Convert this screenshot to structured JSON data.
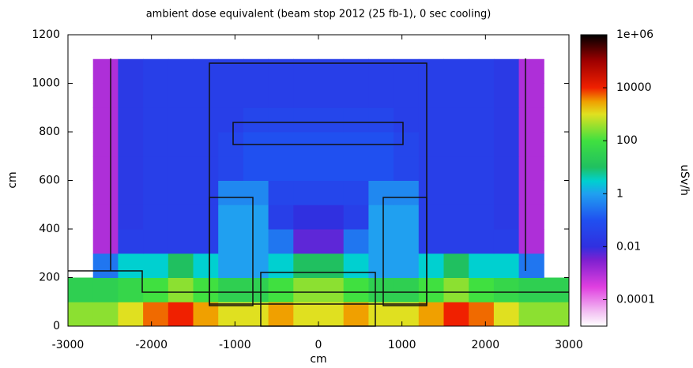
{
  "chart_data": {
    "type": "heatmap",
    "title": "ambient dose equivalent (beam stop 2012 (25 fb-1), 0 sec cooling)",
    "xlabel": "cm",
    "ylabel": "cm",
    "colorbar_label": "uSv/h",
    "xlim": [
      -3000,
      3000
    ],
    "xticks": [
      -3000,
      -2000,
      -1000,
      0,
      1000,
      2000,
      3000
    ],
    "ylim": [
      0,
      1200
    ],
    "yticks": [
      0,
      200,
      400,
      600,
      800,
      1000,
      1200
    ],
    "zlim": [
      1e-05,
      1000000
    ],
    "zticks": [
      {
        "value": 1000000,
        "label": "1e+06"
      },
      10000,
      100,
      1,
      0.01,
      0.0001
    ],
    "zscale": "log",
    "colormap": [
      {
        "value": 1e-05,
        "color": "#ffffff"
      },
      {
        "value": 3e-05,
        "color": "#f4c8f4"
      },
      {
        "value": 0.0003,
        "color": "#e040e0"
      },
      {
        "value": 0.003,
        "color": "#8020d0"
      },
      {
        "value": 0.01,
        "color": "#3030e0"
      },
      {
        "value": 0.1,
        "color": "#2050f0"
      },
      {
        "value": 1,
        "color": "#20a0f0"
      },
      {
        "value": 3,
        "color": "#00d0d0"
      },
      {
        "value": 10,
        "color": "#20c060"
      },
      {
        "value": 100,
        "color": "#40e040"
      },
      {
        "value": 1000,
        "color": "#e0e020"
      },
      {
        "value": 3000,
        "color": "#f0a000"
      },
      {
        "value": 10000,
        "color": "#f02000"
      },
      {
        "value": 100000,
        "color": "#a00000"
      },
      {
        "value": 1000000,
        "color": "#000000"
      }
    ],
    "x_edges": [
      -3000,
      -2700,
      -2400,
      -2100,
      -1800,
      -1500,
      -1200,
      -900,
      -600,
      -300,
      0,
      300,
      600,
      900,
      1200,
      1500,
      1800,
      2100,
      2400,
      2700,
      3000
    ],
    "y_edges": [
      0,
      100,
      200,
      300,
      400,
      500,
      600,
      700,
      800,
      900,
      1000,
      1100,
      1200
    ],
    "z": [
      [
        300,
        300,
        1000,
        5000,
        10000,
        3000,
        1000,
        1000,
        3000,
        1000,
        1000,
        3000,
        1000,
        1000,
        3000,
        10000,
        5000,
        1000,
        300,
        300
      ],
      [
        30,
        30,
        50,
        100,
        300,
        100,
        30,
        30,
        100,
        300,
        300,
        100,
        30,
        30,
        100,
        300,
        100,
        50,
        30,
        30
      ],
      [
        null,
        0.3,
        3,
        3,
        10,
        3,
        1,
        1,
        3,
        10,
        10,
        3,
        1,
        1,
        3,
        10,
        3,
        3,
        0.3,
        null
      ],
      [
        null,
        0.001,
        0.03,
        0.03,
        0.03,
        0.03,
        1,
        1,
        0.3,
        0.005,
        0.005,
        0.3,
        1,
        1,
        0.03,
        0.03,
        0.03,
        0.03,
        0.001,
        null
      ],
      [
        null,
        0.001,
        0.02,
        0.03,
        0.03,
        0.03,
        1,
        1,
        0.03,
        0.01,
        0.01,
        0.03,
        1,
        1,
        0.03,
        0.03,
        0.03,
        0.02,
        0.001,
        null
      ],
      [
        null,
        0.001,
        0.02,
        0.03,
        0.03,
        0.03,
        0.5,
        0.5,
        0.05,
        0.05,
        0.05,
        0.05,
        0.5,
        0.5,
        0.03,
        0.03,
        0.03,
        0.02,
        0.001,
        null
      ],
      [
        null,
        0.001,
        0.02,
        0.03,
        0.03,
        0.03,
        0.05,
        0.1,
        0.1,
        0.1,
        0.1,
        0.1,
        0.1,
        0.05,
        0.03,
        0.03,
        0.03,
        0.02,
        0.001,
        null
      ],
      [
        null,
        0.001,
        0.02,
        0.03,
        0.03,
        0.03,
        0.05,
        0.1,
        0.1,
        0.1,
        0.1,
        0.1,
        0.1,
        0.05,
        0.03,
        0.03,
        0.03,
        0.02,
        0.001,
        null
      ],
      [
        null,
        0.001,
        0.02,
        0.03,
        0.03,
        0.03,
        0.03,
        0.05,
        0.05,
        0.05,
        0.05,
        0.05,
        0.05,
        0.03,
        0.03,
        0.03,
        0.03,
        0.02,
        0.001,
        null
      ],
      [
        null,
        0.001,
        0.02,
        0.03,
        0.03,
        0.03,
        0.03,
        0.03,
        0.03,
        0.03,
        0.03,
        0.03,
        0.03,
        0.03,
        0.03,
        0.03,
        0.03,
        0.02,
        0.001,
        null
      ],
      [
        null,
        0.001,
        0.02,
        0.03,
        0.03,
        0.03,
        0.03,
        0.03,
        0.03,
        0.03,
        0.03,
        0.03,
        0.03,
        0.03,
        0.03,
        0.03,
        0.03,
        0.02,
        0.001,
        null
      ],
      [
        null,
        null,
        null,
        null,
        null,
        null,
        null,
        null,
        null,
        null,
        null,
        null,
        null,
        null,
        null,
        null,
        null,
        null,
        null,
        null
      ]
    ]
  }
}
